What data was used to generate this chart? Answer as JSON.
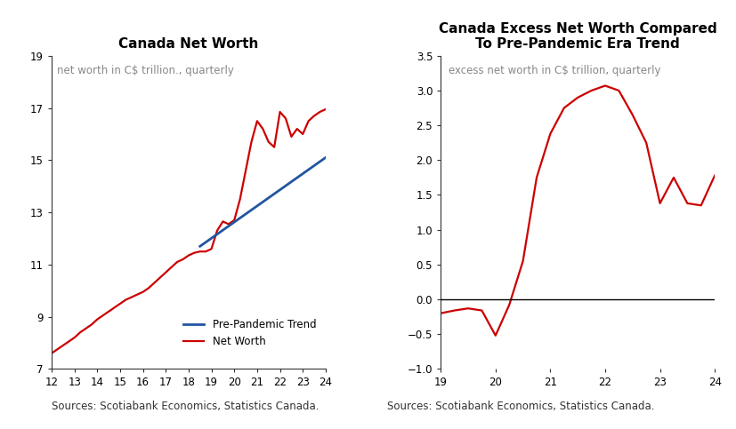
{
  "chart1": {
    "title": "Canada Net Worth",
    "subtitle": "net worth in C$ trillion., quarterly",
    "xlim": [
      12,
      24
    ],
    "ylim": [
      7,
      19
    ],
    "xticks": [
      12,
      13,
      14,
      15,
      16,
      17,
      18,
      19,
      20,
      21,
      22,
      23,
      24
    ],
    "yticks": [
      7,
      9,
      11,
      13,
      15,
      17,
      19
    ],
    "net_worth_x": [
      12.0,
      12.25,
      12.5,
      12.75,
      13.0,
      13.25,
      13.5,
      13.75,
      14.0,
      14.25,
      14.5,
      14.75,
      15.0,
      15.25,
      15.5,
      15.75,
      16.0,
      16.25,
      16.5,
      16.75,
      17.0,
      17.25,
      17.5,
      17.75,
      18.0,
      18.25,
      18.5,
      18.75,
      19.0,
      19.25,
      19.5,
      19.75,
      20.0,
      20.25,
      20.5,
      20.75,
      21.0,
      21.25,
      21.5,
      21.75,
      22.0,
      22.25,
      22.5,
      22.75,
      23.0,
      23.25,
      23.5,
      23.75,
      24.0
    ],
    "net_worth_y": [
      7.6,
      7.75,
      7.9,
      8.05,
      8.2,
      8.4,
      8.55,
      8.7,
      8.9,
      9.05,
      9.2,
      9.35,
      9.5,
      9.65,
      9.75,
      9.85,
      9.95,
      10.1,
      10.3,
      10.5,
      10.7,
      10.9,
      11.1,
      11.2,
      11.35,
      11.45,
      11.5,
      11.5,
      11.6,
      12.3,
      12.65,
      12.55,
      12.7,
      13.5,
      14.6,
      15.7,
      16.5,
      16.2,
      15.7,
      15.5,
      16.85,
      16.6,
      15.9,
      16.2,
      16.0,
      16.5,
      16.7,
      16.85,
      16.95
    ],
    "trend_x": [
      18.5,
      24.0
    ],
    "trend_y": [
      11.7,
      15.1
    ],
    "net_worth_color": "#cc0000",
    "trend_color": "#2255a0",
    "legend_labels": [
      "Pre-Pandemic Trend",
      "Net Worth"
    ],
    "source": "Sources: Scotiabank Economics, Statistics Canada."
  },
  "chart2": {
    "title": "Canada Excess Net Worth Compared\nTo Pre-Pandemic Era Trend",
    "subtitle": "excess net worth in C$ trillion, quarterly",
    "xlim": [
      19,
      24
    ],
    "ylim": [
      -1.0,
      3.5
    ],
    "xticks": [
      19,
      20,
      21,
      22,
      23,
      24
    ],
    "yticks": [
      -1.0,
      -0.5,
      0.0,
      0.5,
      1.0,
      1.5,
      2.0,
      2.5,
      3.0,
      3.5
    ],
    "excess_x": [
      19.0,
      19.25,
      19.5,
      19.75,
      20.0,
      20.25,
      20.5,
      20.75,
      21.0,
      21.25,
      21.5,
      21.75,
      22.0,
      22.25,
      22.5,
      22.75,
      23.0,
      23.25,
      23.5,
      23.75,
      24.0
    ],
    "excess_y": [
      -0.2,
      -0.16,
      -0.13,
      -0.16,
      -0.52,
      -0.08,
      0.55,
      1.75,
      2.38,
      2.75,
      2.9,
      3.0,
      3.07,
      3.0,
      2.65,
      2.25,
      1.38,
      1.75,
      1.38,
      1.35,
      1.78
    ],
    "line_color": "#cc0000",
    "zero_line_color": "#000000",
    "source": "Sources: Scotiabank Economics, Statistics Canada."
  },
  "background_color": "#ffffff",
  "title_fontsize": 11,
  "subtitle_fontsize": 8.5,
  "tick_fontsize": 8.5,
  "source_fontsize": 8.5
}
